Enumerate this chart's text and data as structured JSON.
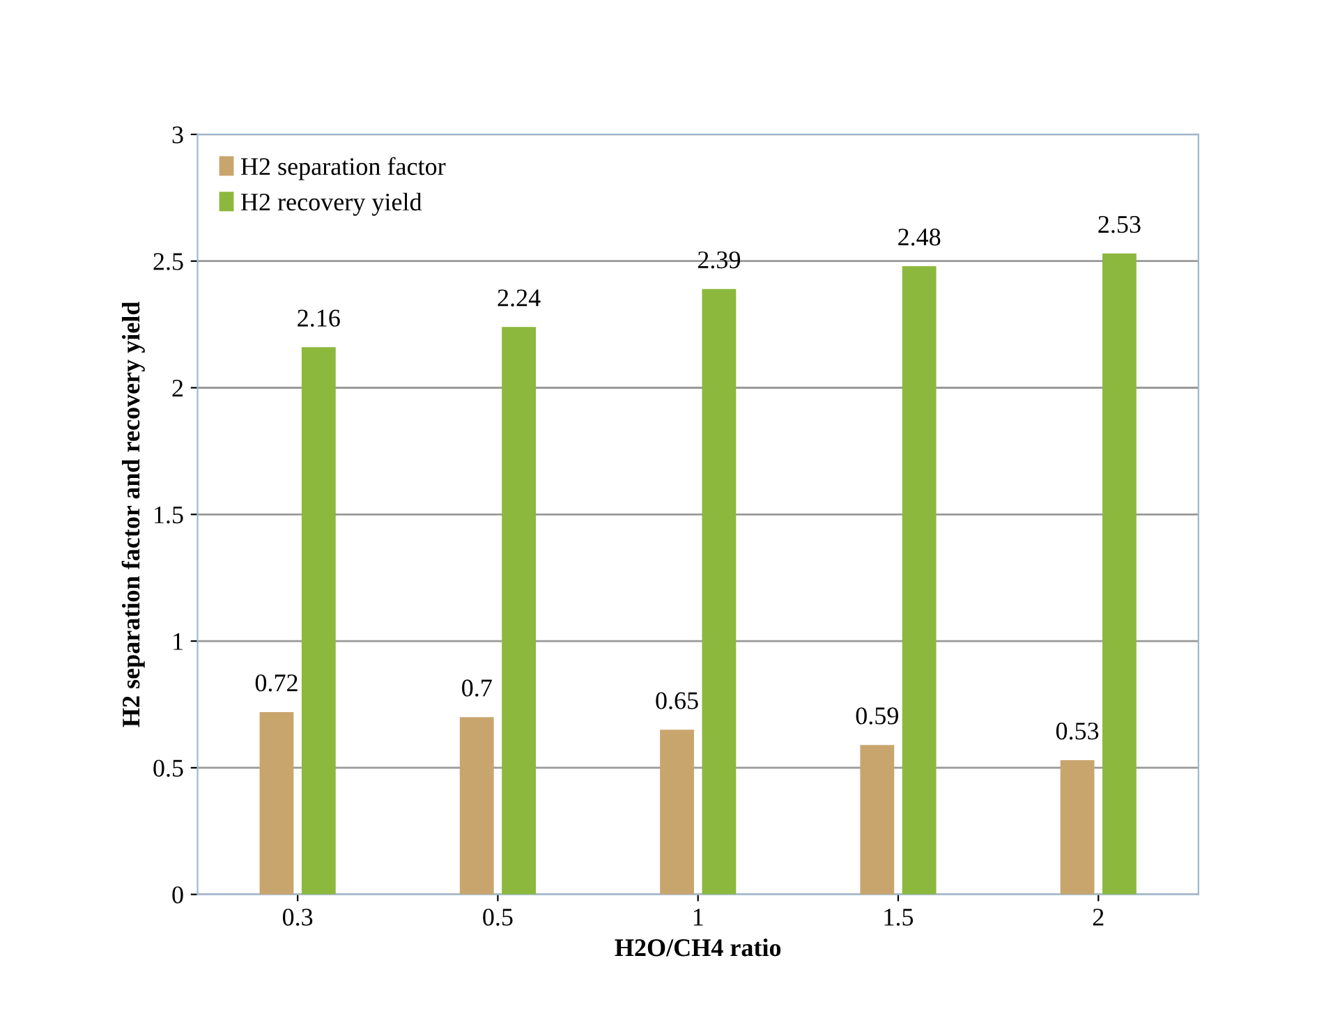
{
  "chart_data": {
    "type": "bar",
    "xlabel": "H2O/CH4 ratio",
    "ylabel": "H2 separation factor and recovery yield",
    "categories": [
      "0.3",
      "0.5",
      "1",
      "1.5",
      "2"
    ],
    "series": [
      {
        "name": "H2 separation factor",
        "color": "#c9a56e",
        "values": [
          0.72,
          0.7,
          0.65,
          0.59,
          0.53
        ]
      },
      {
        "name": "H2 recovery yield",
        "color": "#8db83e",
        "values": [
          2.16,
          2.24,
          2.39,
          2.48,
          2.53
        ]
      }
    ],
    "ylim": [
      0,
      3
    ],
    "yticks": [
      0,
      0.5,
      1,
      1.5,
      2,
      2.5,
      3
    ],
    "grid": "y",
    "legend": "top left",
    "data_labels": true
  }
}
